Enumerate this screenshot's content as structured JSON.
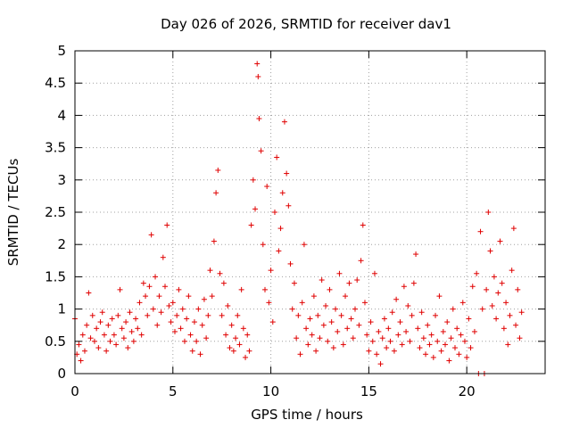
{
  "chart_data": {
    "type": "scatter",
    "title": "Day 026 of 2026, SRMTID for receiver dav1",
    "xlabel": "GPS time / hours",
    "ylabel": "SRMTID / TECUs",
    "xlim": [
      0,
      24
    ],
    "ylim": [
      0,
      5
    ],
    "grid": true,
    "marker": "+",
    "series_color": "#e00000",
    "x_ticks": [
      {
        "value": 0,
        "label": "0"
      },
      {
        "value": 5,
        "label": "5"
      },
      {
        "value": 10,
        "label": "10"
      },
      {
        "value": 15,
        "label": "15"
      },
      {
        "value": 20,
        "label": "20"
      }
    ],
    "y_ticks": [
      {
        "value": 0,
        "label": "0"
      },
      {
        "value": 0.5,
        "label": "0.5"
      },
      {
        "value": 1,
        "label": "1"
      },
      {
        "value": 1.5,
        "label": "1.5"
      },
      {
        "value": 2,
        "label": "2"
      },
      {
        "value": 2.5,
        "label": "2.5"
      },
      {
        "value": 3,
        "label": "3"
      },
      {
        "value": 3.5,
        "label": "3.5"
      },
      {
        "value": 4,
        "label": "4"
      },
      {
        "value": 4.5,
        "label": "4.5"
      },
      {
        "value": 5,
        "label": "5"
      }
    ],
    "series": [
      {
        "name": "SRMTID dav1",
        "points": [
          [
            0.0,
            0.85
          ],
          [
            0.1,
            0.3
          ],
          [
            0.2,
            0.45
          ],
          [
            0.3,
            0.2
          ],
          [
            0.4,
            0.6
          ],
          [
            0.5,
            0.35
          ],
          [
            0.6,
            0.75
          ],
          [
            0.7,
            1.25
          ],
          [
            0.8,
            0.55
          ],
          [
            0.9,
            0.9
          ],
          [
            1.0,
            0.5
          ],
          [
            1.1,
            0.7
          ],
          [
            1.2,
            0.4
          ],
          [
            1.3,
            0.8
          ],
          [
            1.4,
            0.95
          ],
          [
            1.5,
            0.6
          ],
          [
            1.6,
            0.35
          ],
          [
            1.7,
            0.75
          ],
          [
            1.8,
            0.5
          ],
          [
            1.9,
            0.85
          ],
          [
            2.0,
            0.6
          ],
          [
            2.1,
            0.45
          ],
          [
            2.2,
            0.9
          ],
          [
            2.3,
            1.3
          ],
          [
            2.4,
            0.7
          ],
          [
            2.5,
            0.55
          ],
          [
            2.6,
            0.8
          ],
          [
            2.7,
            0.4
          ],
          [
            2.8,
            0.95
          ],
          [
            2.9,
            0.65
          ],
          [
            3.0,
            0.5
          ],
          [
            3.1,
            0.85
          ],
          [
            3.2,
            0.7
          ],
          [
            3.3,
            1.1
          ],
          [
            3.4,
            0.6
          ],
          [
            3.5,
            1.4
          ],
          [
            3.6,
            1.2
          ],
          [
            3.7,
            0.9
          ],
          [
            3.8,
            1.35
          ],
          [
            3.9,
            2.15
          ],
          [
            4.0,
            1.0
          ],
          [
            4.1,
            1.5
          ],
          [
            4.2,
            0.75
          ],
          [
            4.3,
            1.2
          ],
          [
            4.4,
            0.95
          ],
          [
            4.5,
            1.8
          ],
          [
            4.6,
            1.35
          ],
          [
            4.7,
            2.3
          ],
          [
            4.8,
            1.05
          ],
          [
            4.9,
            0.8
          ],
          [
            5.0,
            1.1
          ],
          [
            5.1,
            0.65
          ],
          [
            5.2,
            0.9
          ],
          [
            5.3,
            1.3
          ],
          [
            5.4,
            0.7
          ],
          [
            5.5,
            1.0
          ],
          [
            5.6,
            0.5
          ],
          [
            5.7,
            0.85
          ],
          [
            5.8,
            1.2
          ],
          [
            5.9,
            0.6
          ],
          [
            6.0,
            0.35
          ],
          [
            6.1,
            0.8
          ],
          [
            6.2,
            0.5
          ],
          [
            6.3,
            1.0
          ],
          [
            6.4,
            0.3
          ],
          [
            6.5,
            0.75
          ],
          [
            6.6,
            1.15
          ],
          [
            6.7,
            0.55
          ],
          [
            6.8,
            0.9
          ],
          [
            6.9,
            1.6
          ],
          [
            7.0,
            1.2
          ],
          [
            7.1,
            2.05
          ],
          [
            7.2,
            2.8
          ],
          [
            7.3,
            3.15
          ],
          [
            7.4,
            1.55
          ],
          [
            7.5,
            0.9
          ],
          [
            7.6,
            1.4
          ],
          [
            7.7,
            0.6
          ],
          [
            7.8,
            1.05
          ],
          [
            7.9,
            0.4
          ],
          [
            8.0,
            0.75
          ],
          [
            8.1,
            0.35
          ],
          [
            8.2,
            0.55
          ],
          [
            8.3,
            0.9
          ],
          [
            8.4,
            0.45
          ],
          [
            8.5,
            1.3
          ],
          [
            8.6,
            0.7
          ],
          [
            8.7,
            0.25
          ],
          [
            8.8,
            0.6
          ],
          [
            8.9,
            0.35
          ],
          [
            9.0,
            2.3
          ],
          [
            9.1,
            3.0
          ],
          [
            9.2,
            2.55
          ],
          [
            9.3,
            4.8
          ],
          [
            9.35,
            4.6
          ],
          [
            9.4,
            3.95
          ],
          [
            9.5,
            3.45
          ],
          [
            9.6,
            2.0
          ],
          [
            9.7,
            1.3
          ],
          [
            9.8,
            2.9
          ],
          [
            9.9,
            1.1
          ],
          [
            10.0,
            1.6
          ],
          [
            10.1,
            0.8
          ],
          [
            10.2,
            2.5
          ],
          [
            10.3,
            3.35
          ],
          [
            10.4,
            1.9
          ],
          [
            10.5,
            2.25
          ],
          [
            10.6,
            2.8
          ],
          [
            10.7,
            3.9
          ],
          [
            10.8,
            3.1
          ],
          [
            10.9,
            2.6
          ],
          [
            11.0,
            1.7
          ],
          [
            11.1,
            1.0
          ],
          [
            11.2,
            1.4
          ],
          [
            11.3,
            0.55
          ],
          [
            11.4,
            0.9
          ],
          [
            11.5,
            0.3
          ],
          [
            11.6,
            1.1
          ],
          [
            11.7,
            2.0
          ],
          [
            11.8,
            0.7
          ],
          [
            11.9,
            0.45
          ],
          [
            12.0,
            0.85
          ],
          [
            12.1,
            0.6
          ],
          [
            12.2,
            1.2
          ],
          [
            12.3,
            0.35
          ],
          [
            12.4,
            0.9
          ],
          [
            12.5,
            0.55
          ],
          [
            12.6,
            1.45
          ],
          [
            12.7,
            0.75
          ],
          [
            12.8,
            1.05
          ],
          [
            12.9,
            0.5
          ],
          [
            13.0,
            1.3
          ],
          [
            13.1,
            0.8
          ],
          [
            13.2,
            0.4
          ],
          [
            13.3,
            1.0
          ],
          [
            13.4,
            0.65
          ],
          [
            13.5,
            1.55
          ],
          [
            13.6,
            0.9
          ],
          [
            13.7,
            0.45
          ],
          [
            13.8,
            1.2
          ],
          [
            13.9,
            0.7
          ],
          [
            14.0,
            1.4
          ],
          [
            14.1,
            0.85
          ],
          [
            14.2,
            0.55
          ],
          [
            14.3,
            1.0
          ],
          [
            14.4,
            1.45
          ],
          [
            14.5,
            0.75
          ],
          [
            14.6,
            1.75
          ],
          [
            14.7,
            2.3
          ],
          [
            14.8,
            1.1
          ],
          [
            14.9,
            0.6
          ],
          [
            15.0,
            0.35
          ],
          [
            15.1,
            0.8
          ],
          [
            15.2,
            0.5
          ],
          [
            15.3,
            1.55
          ],
          [
            15.4,
            0.3
          ],
          [
            15.5,
            0.65
          ],
          [
            15.6,
            0.15
          ],
          [
            15.7,
            0.55
          ],
          [
            15.8,
            0.85
          ],
          [
            15.9,
            0.4
          ],
          [
            16.0,
            0.7
          ],
          [
            16.1,
            0.5
          ],
          [
            16.2,
            0.95
          ],
          [
            16.3,
            0.35
          ],
          [
            16.4,
            1.15
          ],
          [
            16.5,
            0.6
          ],
          [
            16.6,
            0.8
          ],
          [
            16.7,
            0.45
          ],
          [
            16.8,
            1.35
          ],
          [
            16.9,
            0.65
          ],
          [
            17.0,
            1.05
          ],
          [
            17.1,
            0.5
          ],
          [
            17.2,
            0.9
          ],
          [
            17.3,
            1.4
          ],
          [
            17.4,
            1.85
          ],
          [
            17.5,
            0.7
          ],
          [
            17.6,
            0.4
          ],
          [
            17.7,
            0.95
          ],
          [
            17.8,
            0.55
          ],
          [
            17.9,
            0.3
          ],
          [
            18.0,
            0.75
          ],
          [
            18.1,
            0.45
          ],
          [
            18.2,
            0.6
          ],
          [
            18.3,
            0.25
          ],
          [
            18.4,
            0.9
          ],
          [
            18.5,
            0.5
          ],
          [
            18.6,
            1.2
          ],
          [
            18.7,
            0.35
          ],
          [
            18.8,
            0.65
          ],
          [
            18.9,
            0.45
          ],
          [
            19.0,
            0.8
          ],
          [
            19.1,
            0.2
          ],
          [
            19.2,
            0.55
          ],
          [
            19.3,
            1.0
          ],
          [
            19.4,
            0.4
          ],
          [
            19.5,
            0.7
          ],
          [
            19.6,
            0.3
          ],
          [
            19.7,
            0.6
          ],
          [
            19.8,
            1.1
          ],
          [
            19.9,
            0.5
          ],
          [
            20.0,
            0.25
          ],
          [
            20.1,
            0.85
          ],
          [
            20.2,
            0.4
          ],
          [
            20.3,
            1.35
          ],
          [
            20.4,
            0.65
          ],
          [
            20.5,
            1.55
          ],
          [
            20.6,
            0.0
          ],
          [
            20.7,
            2.2
          ],
          [
            20.8,
            1.0
          ],
          [
            20.9,
            0.0
          ],
          [
            21.0,
            1.3
          ],
          [
            21.1,
            2.5
          ],
          [
            21.2,
            1.9
          ],
          [
            21.3,
            1.05
          ],
          [
            21.4,
            1.5
          ],
          [
            21.5,
            0.85
          ],
          [
            21.6,
            1.25
          ],
          [
            21.7,
            2.05
          ],
          [
            21.8,
            1.4
          ],
          [
            21.9,
            0.7
          ],
          [
            22.0,
            1.1
          ],
          [
            22.1,
            0.45
          ],
          [
            22.2,
            0.9
          ],
          [
            22.3,
            1.6
          ],
          [
            22.4,
            2.25
          ],
          [
            22.5,
            0.75
          ],
          [
            22.6,
            1.3
          ],
          [
            22.7,
            0.55
          ],
          [
            22.8,
            0.95
          ]
        ]
      }
    ]
  }
}
